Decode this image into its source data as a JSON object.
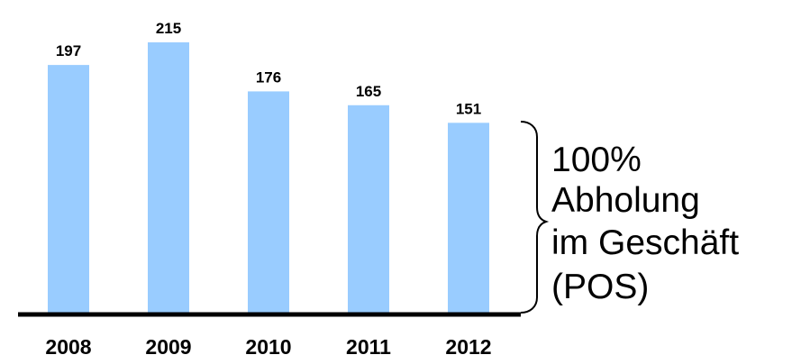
{
  "chart_data": {
    "type": "bar",
    "categories": [
      "2008",
      "2009",
      "2010",
      "2011",
      "2012"
    ],
    "values": [
      197,
      215,
      176,
      165,
      151
    ],
    "title": "",
    "xlabel": "",
    "ylabel": "",
    "ylim": [
      0,
      215
    ],
    "grid": false,
    "legend": "none",
    "annotation": {
      "lines": [
        "100%",
        "Abholung",
        "im Geschäft",
        "(POS)"
      ]
    }
  },
  "colors": {
    "bar": "#99ccff",
    "axis": "#000000",
    "text": "#000000"
  }
}
